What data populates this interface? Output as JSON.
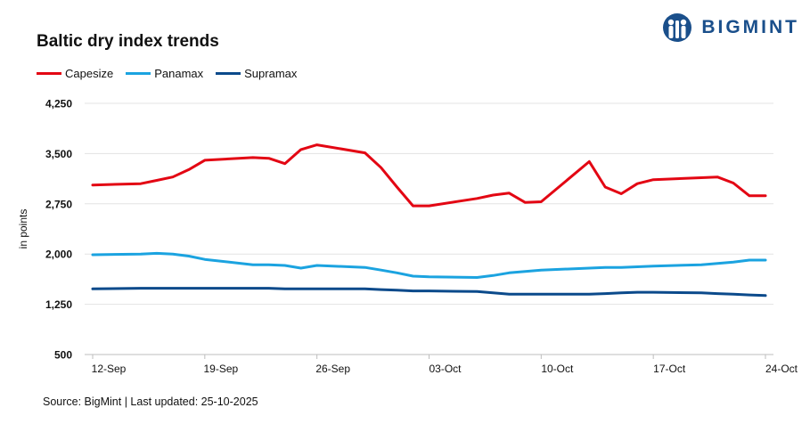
{
  "brand": {
    "name": "BIGMINT",
    "color": "#1a4f8b"
  },
  "footer": {
    "text": "Source: BigMint | Last updated: 25-10-2025"
  },
  "chart_data": {
    "type": "line",
    "title": "Baltic dry index trends",
    "ylabel": "in points",
    "xlabel": "",
    "ylim": [
      500,
      4250
    ],
    "yticks": [
      500,
      1250,
      2000,
      2750,
      3500,
      4250
    ],
    "ytick_labels": [
      "500",
      "1,250",
      "2,000",
      "2,750",
      "3,500",
      "4,250"
    ],
    "grid": true,
    "legend_position": "top-left",
    "x": [
      "2025-09-12",
      "2025-09-15",
      "2025-09-16",
      "2025-09-17",
      "2025-09-18",
      "2025-09-19",
      "2025-09-22",
      "2025-09-23",
      "2025-09-24",
      "2025-09-25",
      "2025-09-26",
      "2025-09-29",
      "2025-09-30",
      "2025-10-01",
      "2025-10-02",
      "2025-10-03",
      "2025-10-06",
      "2025-10-07",
      "2025-10-08",
      "2025-10-09",
      "2025-10-10",
      "2025-10-13",
      "2025-10-14",
      "2025-10-15",
      "2025-10-16",
      "2025-10-17",
      "2025-10-20",
      "2025-10-21",
      "2025-10-22",
      "2025-10-23",
      "2025-10-24"
    ],
    "xticks": [
      "2025-09-12",
      "2025-09-19",
      "2025-09-26",
      "2025-10-03",
      "2025-10-10",
      "2025-10-17",
      "2025-10-24"
    ],
    "xtick_labels": [
      "12-Sep",
      "19-Sep",
      "26-Sep",
      "03-Oct",
      "10-Oct",
      "17-Oct",
      "24-Oct"
    ],
    "series": [
      {
        "name": "Capesize",
        "color": "#e30613",
        "values": [
          3030,
          3050,
          3100,
          3150,
          3260,
          3400,
          3440,
          3430,
          3350,
          3560,
          3630,
          3510,
          3290,
          3000,
          2720,
          2720,
          2830,
          2880,
          2910,
          2770,
          2780,
          3380,
          3000,
          2900,
          3050,
          3110,
          3140,
          3150,
          3060,
          2870,
          2870
        ]
      },
      {
        "name": "Panamax",
        "color": "#1ba3e0",
        "values": [
          1990,
          2000,
          2010,
          2000,
          1970,
          1920,
          1840,
          1840,
          1830,
          1790,
          1830,
          1800,
          1760,
          1720,
          1670,
          1660,
          1650,
          1680,
          1720,
          1740,
          1760,
          1790,
          1800,
          1800,
          1810,
          1820,
          1840,
          1860,
          1880,
          1910,
          1910
        ]
      },
      {
        "name": "Supramax",
        "color": "#0b4a8b",
        "values": [
          1480,
          1490,
          1490,
          1490,
          1490,
          1490,
          1490,
          1490,
          1480,
          1480,
          1480,
          1480,
          1470,
          1460,
          1450,
          1450,
          1440,
          1420,
          1400,
          1400,
          1400,
          1400,
          1410,
          1420,
          1430,
          1430,
          1420,
          1410,
          1400,
          1390,
          1380
        ]
      }
    ]
  }
}
